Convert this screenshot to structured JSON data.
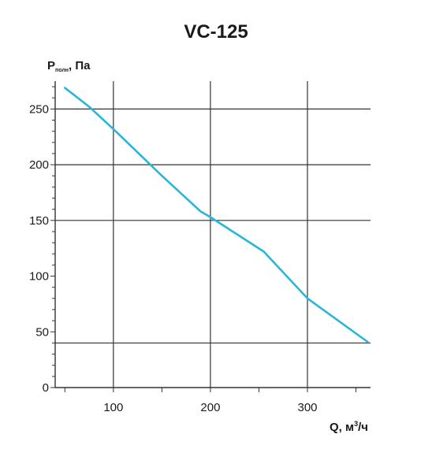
{
  "chart_data": {
    "type": "line",
    "title": "VC-125",
    "ylabel": {
      "main": "P",
      "sub": "полн",
      "rest": ", Па"
    },
    "xlabel": {
      "main": "Q, м",
      "sup": "3",
      "rest": "/ч"
    },
    "xlim": [
      40,
      365
    ],
    "ylim": [
      0,
      275
    ],
    "x_ticks": [
      100,
      200,
      300
    ],
    "y_ticks": [
      0,
      50,
      100,
      150,
      200,
      250
    ],
    "x_grid": [
      100,
      200,
      300
    ],
    "y_grid": [
      40,
      150,
      200,
      250
    ],
    "y_minor_step": 10,
    "grid": true,
    "series": [
      {
        "color": "#29b6d6",
        "x": [
          50,
          75,
          100,
          150,
          190,
          200,
          255,
          300,
          362
        ],
        "y": [
          269,
          252,
          232,
          190,
          158,
          153,
          122,
          80,
          41
        ]
      }
    ]
  }
}
